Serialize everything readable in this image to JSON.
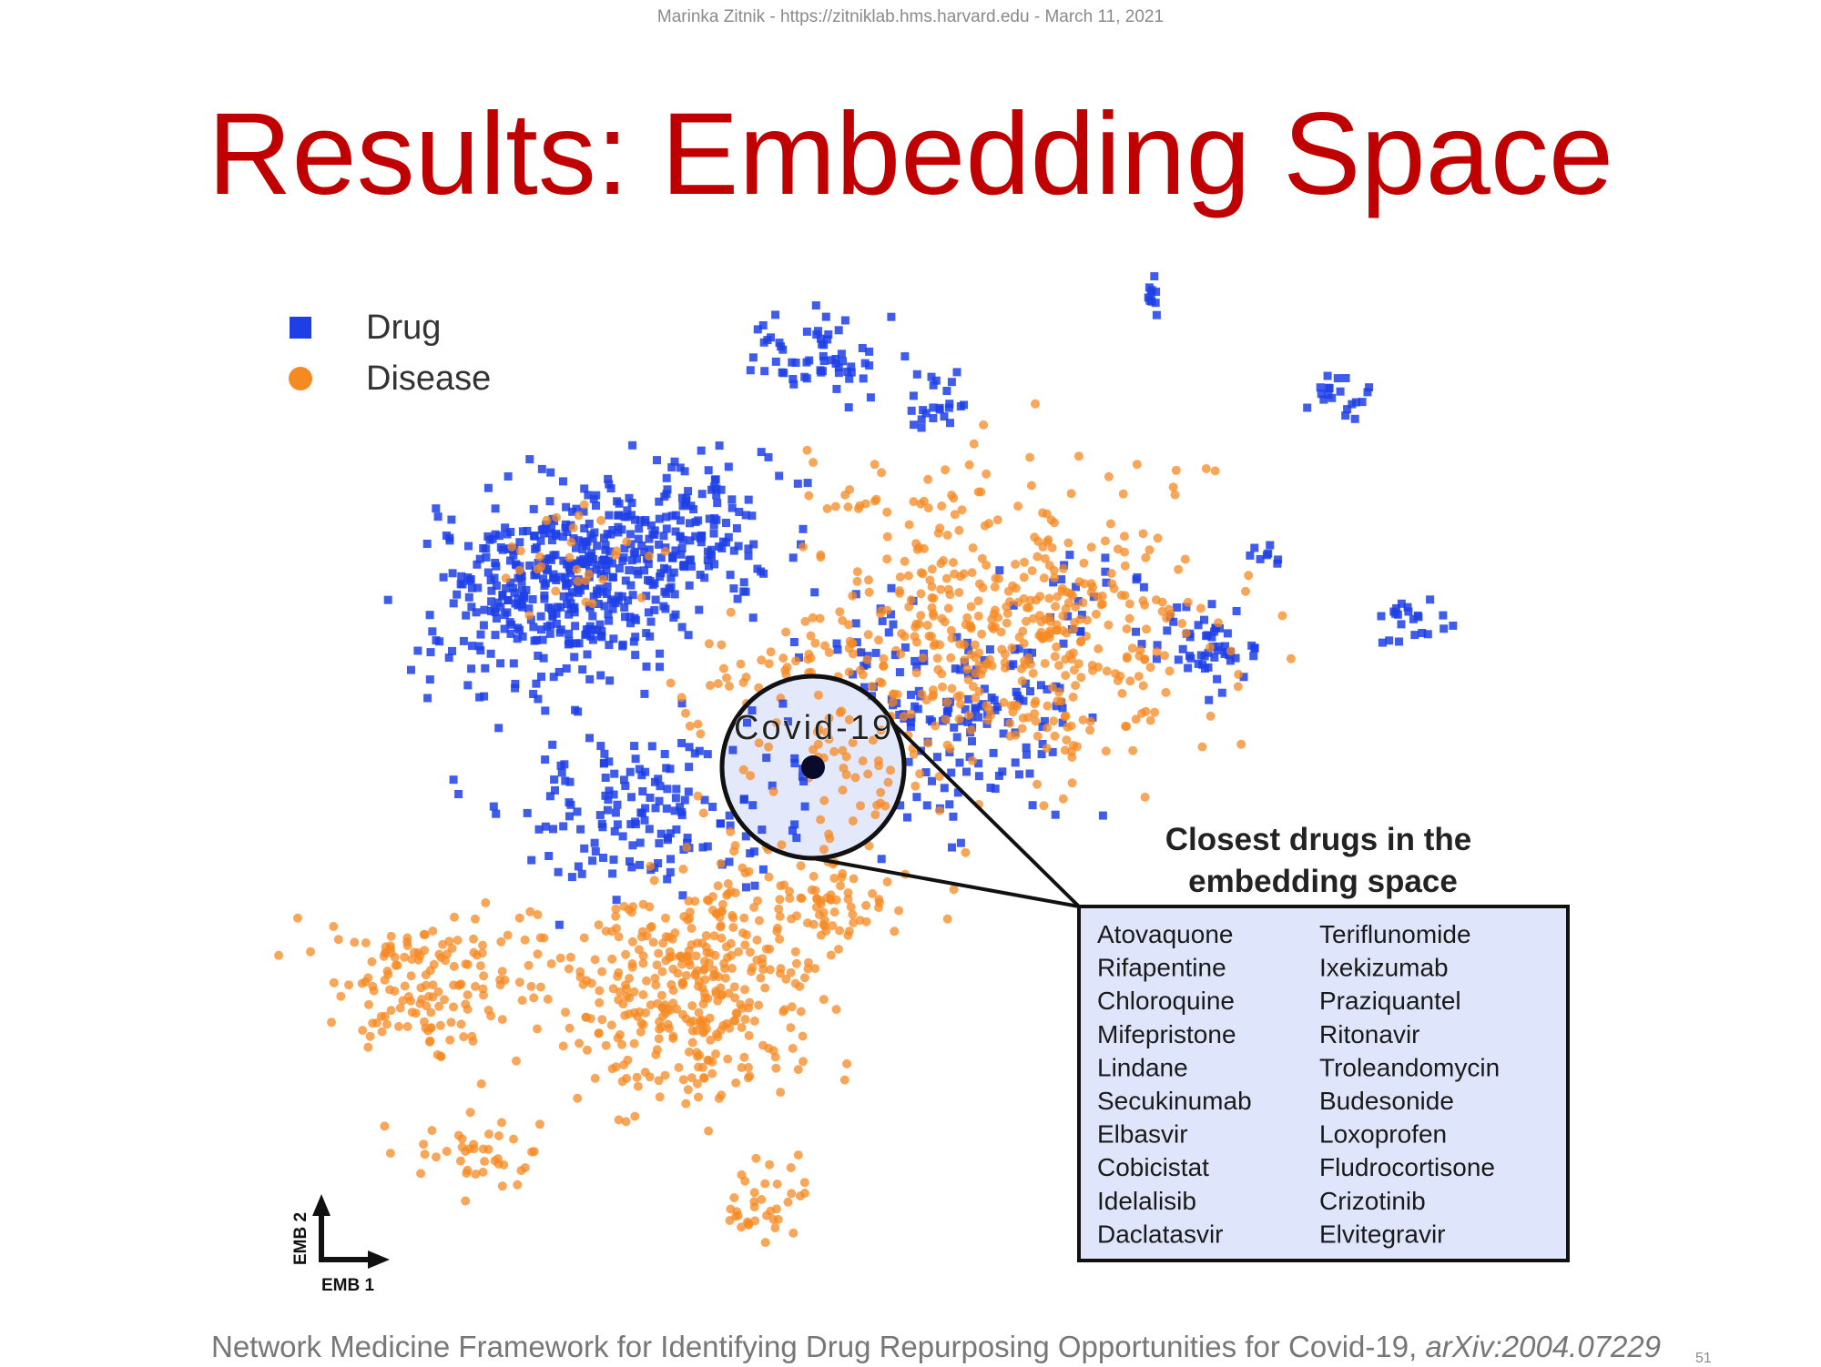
{
  "slide": {
    "header": "Marinka Zitnik - https://zitniklab.hms.harvard.edu - March 11, 2021",
    "title": "Results: Embedding Space",
    "footer_text": "Network Medicine Framework for Identifying Drug Repurposing Opportunities for Covid-19, ",
    "footer_ref": "arXiv:2004.07229",
    "page_number": "51"
  },
  "chart_data": {
    "type": "scatter",
    "title": "",
    "xlabel": "EMB 1",
    "ylabel": "EMB 2",
    "grid": false,
    "legend_position": "top-left",
    "series": [
      {
        "name": "Drug",
        "marker": "square",
        "color": "#1f3fe6"
      },
      {
        "name": "Disease",
        "marker": "circle",
        "color": "#f58a23"
      }
    ],
    "highlight": {
      "label": "Covid-19",
      "color": "#0a0a2a"
    },
    "callout": {
      "title_line1": "Closest drugs in the",
      "title_line2": "embedding space",
      "drugs_col1": [
        "Atovaquone",
        "Rifapentine",
        "Chloroquine",
        "Mifepristone",
        "Lindane",
        "Secukinumab",
        "Elbasvir",
        "Cobicistat",
        "Idelalisib",
        "Daclatasvir"
      ],
      "drugs_col2": [
        "Teriflunomide",
        "Ixekizumab",
        "Praziquantel",
        "Ritonavir",
        "Troleandomycin",
        "Budesonide",
        "Loxoprofen",
        "Fludrocortisone",
        "Crizotinib",
        "Elvitegravir"
      ],
      "box_color": "#dfe5fb"
    }
  }
}
